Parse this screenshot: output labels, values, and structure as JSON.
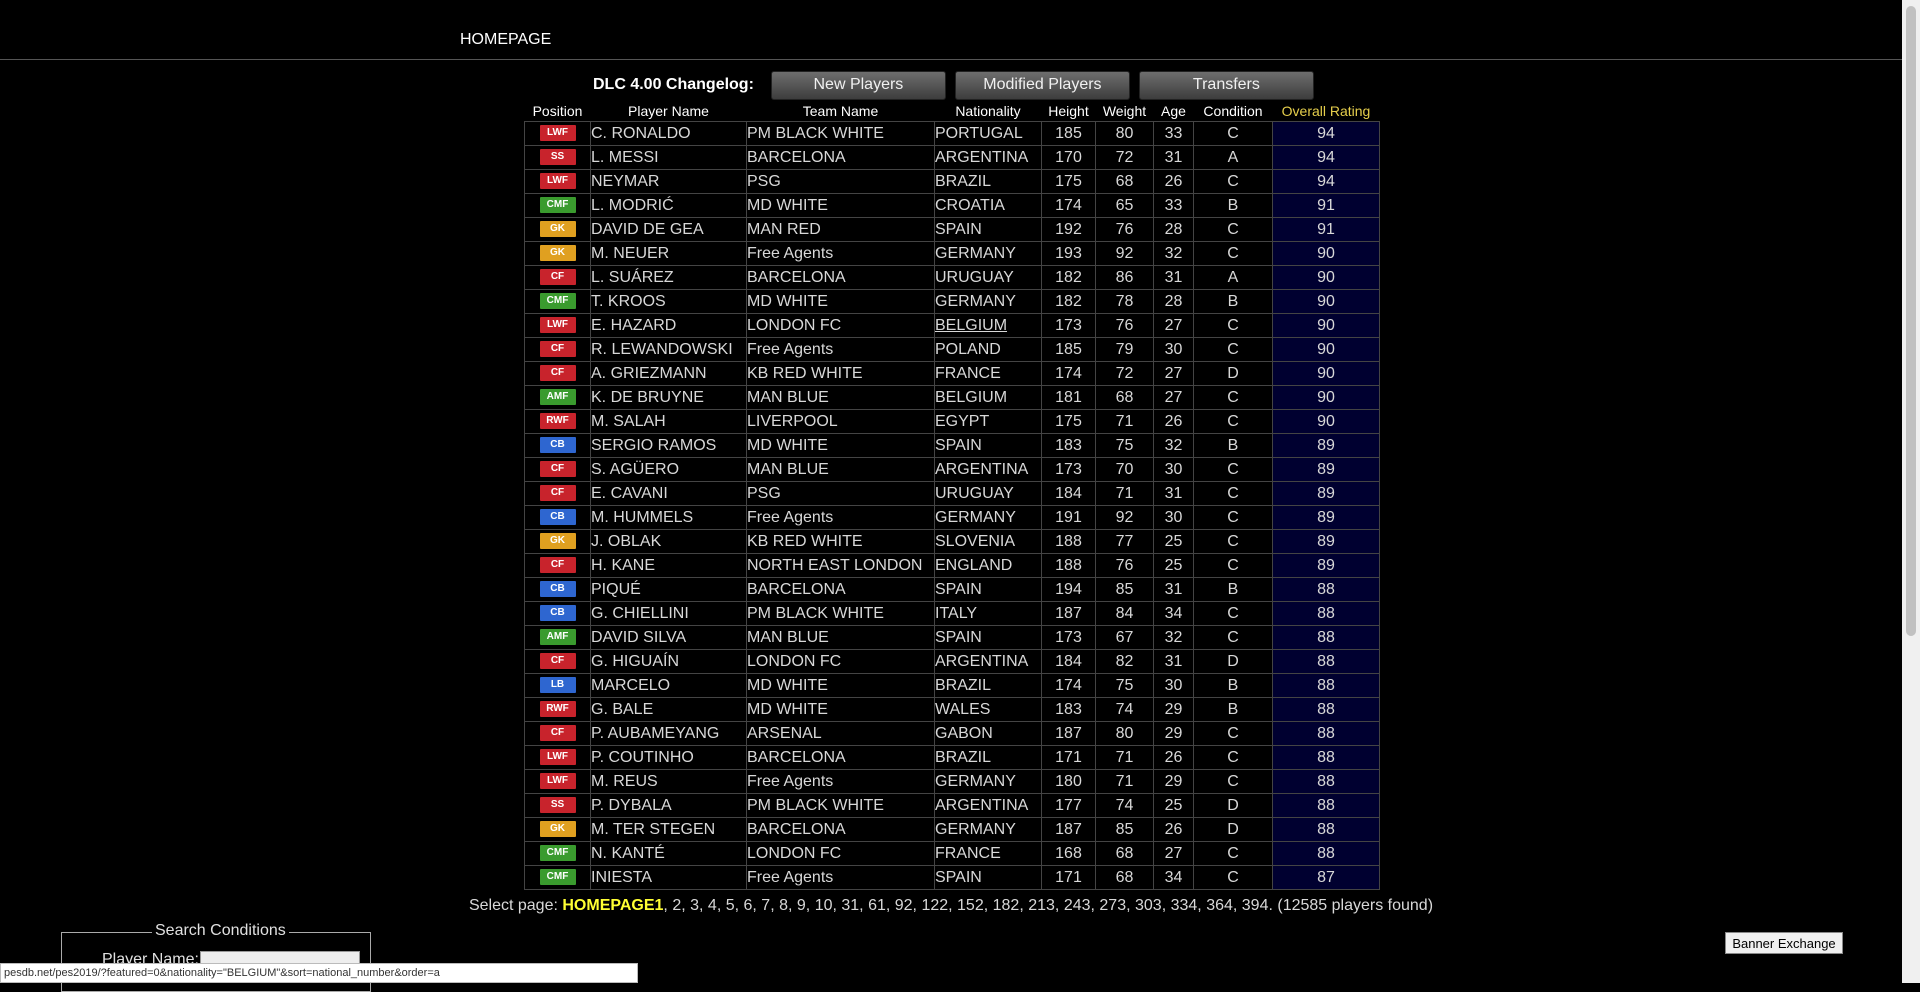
{
  "nav": {
    "homepage": "HOMEPAGE"
  },
  "changelog": {
    "label": "DLC 4.00 Changelog:",
    "buttons": [
      "New Players",
      "Modified Players",
      "Transfers"
    ]
  },
  "position_colors": {
    "LWF": "#c8232c",
    "SS": "#c8232c",
    "CF": "#c8232c",
    "RWF": "#c8232c",
    "CMF": "#3a9b2e",
    "AMF": "#3a9b2e",
    "GK": "#e0a020",
    "CB": "#2e66d0",
    "LB": "#2e66d0"
  },
  "table": {
    "headers": [
      "Position",
      "Player Name",
      "Team Name",
      "Nationality",
      "Height",
      "Weight",
      "Age",
      "Condition",
      "Overall Rating"
    ],
    "rows": [
      [
        "LWF",
        "C. RONALDO",
        "PM BLACK WHITE",
        "PORTUGAL",
        "185",
        "80",
        "33",
        "C",
        "94"
      ],
      [
        "SS",
        "L. MESSI",
        "BARCELONA",
        "ARGENTINA",
        "170",
        "72",
        "31",
        "A",
        "94"
      ],
      [
        "LWF",
        "NEYMAR",
        "PSG",
        "BRAZIL",
        "175",
        "68",
        "26",
        "C",
        "94"
      ],
      [
        "CMF",
        "L. MODRIĆ",
        "MD WHITE",
        "CROATIA",
        "174",
        "65",
        "33",
        "B",
        "91"
      ],
      [
        "GK",
        "DAVID DE GEA",
        "MAN RED",
        "SPAIN",
        "192",
        "76",
        "28",
        "C",
        "91"
      ],
      [
        "GK",
        "M. NEUER",
        "Free Agents",
        "GERMANY",
        "193",
        "92",
        "32",
        "C",
        "90"
      ],
      [
        "CF",
        "L. SUÁREZ",
        "BARCELONA",
        "URUGUAY",
        "182",
        "86",
        "31",
        "A",
        "90"
      ],
      [
        "CMF",
        "T. KROOS",
        "MD WHITE",
        "GERMANY",
        "182",
        "78",
        "28",
        "B",
        "90"
      ],
      [
        "LWF",
        "E. HAZARD",
        "LONDON FC",
        "BELGIUM",
        "173",
        "76",
        "27",
        "C",
        "90"
      ],
      [
        "CF",
        "R. LEWANDOWSKI",
        "Free Agents",
        "POLAND",
        "185",
        "79",
        "30",
        "C",
        "90"
      ],
      [
        "CF",
        "A. GRIEZMANN",
        "KB RED WHITE",
        "FRANCE",
        "174",
        "72",
        "27",
        "D",
        "90"
      ],
      [
        "AMF",
        "K. DE BRUYNE",
        "MAN BLUE",
        "BELGIUM",
        "181",
        "68",
        "27",
        "C",
        "90"
      ],
      [
        "RWF",
        "M. SALAH",
        "LIVERPOOL",
        "EGYPT",
        "175",
        "71",
        "26",
        "C",
        "90"
      ],
      [
        "CB",
        "SERGIO RAMOS",
        "MD WHITE",
        "SPAIN",
        "183",
        "75",
        "32",
        "B",
        "89"
      ],
      [
        "CF",
        "S. AGÜERO",
        "MAN BLUE",
        "ARGENTINA",
        "173",
        "70",
        "30",
        "C",
        "89"
      ],
      [
        "CF",
        "E. CAVANI",
        "PSG",
        "URUGUAY",
        "184",
        "71",
        "31",
        "C",
        "89"
      ],
      [
        "CB",
        "M. HUMMELS",
        "Free Agents",
        "GERMANY",
        "191",
        "92",
        "30",
        "C",
        "89"
      ],
      [
        "GK",
        "J. OBLAK",
        "KB RED WHITE",
        "SLOVENIA",
        "188",
        "77",
        "25",
        "C",
        "89"
      ],
      [
        "CF",
        "H. KANE",
        "NORTH EAST LONDON",
        "ENGLAND",
        "188",
        "76",
        "25",
        "C",
        "89"
      ],
      [
        "CB",
        "PIQUÉ",
        "BARCELONA",
        "SPAIN",
        "194",
        "85",
        "31",
        "B",
        "88"
      ],
      [
        "CB",
        "G. CHIELLINI",
        "PM BLACK WHITE",
        "ITALY",
        "187",
        "84",
        "34",
        "C",
        "88"
      ],
      [
        "AMF",
        "DAVID SILVA",
        "MAN BLUE",
        "SPAIN",
        "173",
        "67",
        "32",
        "C",
        "88"
      ],
      [
        "CF",
        "G. HIGUAÍN",
        "LONDON FC",
        "ARGENTINA",
        "184",
        "82",
        "31",
        "D",
        "88"
      ],
      [
        "LB",
        "MARCELO",
        "MD WHITE",
        "BRAZIL",
        "174",
        "75",
        "30",
        "B",
        "88"
      ],
      [
        "RWF",
        "G. BALE",
        "MD WHITE",
        "WALES",
        "183",
        "74",
        "29",
        "B",
        "88"
      ],
      [
        "CF",
        "P. AUBAMEYANG",
        "ARSENAL",
        "GABON",
        "187",
        "80",
        "29",
        "C",
        "88"
      ],
      [
        "LWF",
        "P. COUTINHO",
        "BARCELONA",
        "BRAZIL",
        "171",
        "71",
        "26",
        "C",
        "88"
      ],
      [
        "LWF",
        "M. REUS",
        "Free Agents",
        "GERMANY",
        "180",
        "71",
        "29",
        "C",
        "88"
      ],
      [
        "SS",
        "P. DYBALA",
        "PM BLACK WHITE",
        "ARGENTINA",
        "177",
        "74",
        "25",
        "D",
        "88"
      ],
      [
        "GK",
        "M. TER STEGEN",
        "BARCELONA",
        "GERMANY",
        "187",
        "85",
        "26",
        "D",
        "88"
      ],
      [
        "CMF",
        "N. KANTÉ",
        "LONDON FC",
        "FRANCE",
        "168",
        "68",
        "27",
        "C",
        "88"
      ],
      [
        "CMF",
        "INIESTA",
        "Free Agents",
        "SPAIN",
        "171",
        "68",
        "34",
        "C",
        "87"
      ]
    ]
  },
  "pager": {
    "prefix": "Select page: ",
    "current": "HOMEPAGE1",
    "pages": [
      "2",
      "3",
      "4",
      "5",
      "6",
      "7",
      "8",
      "9",
      "10",
      "31",
      "61",
      "92",
      "122",
      "152",
      "182",
      "213",
      "243",
      "273",
      "303",
      "334",
      "364",
      "394"
    ],
    "suffix": ". (12585 players found)"
  },
  "search": {
    "legend": "Search Conditions",
    "player_name_label": "Player Name:"
  },
  "banner_button": "Banner Exchange",
  "statusbar": "pesdb.net/pes2019/?featured=0&nationality=\"BELGIUM\"&sort=national_number&order=a"
}
